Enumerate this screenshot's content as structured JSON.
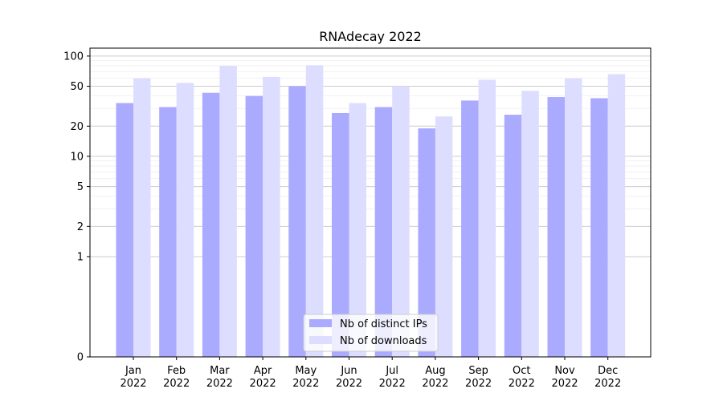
{
  "chart_data": {
    "type": "bar",
    "title": "RNAdecay 2022",
    "xlabel": "",
    "ylabel": "",
    "y_scale": "symlog",
    "ylim": [
      0,
      120
    ],
    "y_ticks": [
      0,
      1,
      2,
      5,
      10,
      20,
      50,
      100
    ],
    "y_tick_labels": [
      "0",
      "1",
      "2",
      "5",
      "10",
      "20",
      "50",
      "100"
    ],
    "categories": [
      "Jan\n2022",
      "Feb\n2022",
      "Mar\n2022",
      "Apr\n2022",
      "May\n2022",
      "Jun\n2022",
      "Jul\n2022",
      "Aug\n2022",
      "Sep\n2022",
      "Oct\n2022",
      "Nov\n2022",
      "Dec\n2022"
    ],
    "series": [
      {
        "name": "Nb of distinct IPs",
        "color": "#aaaaff",
        "values": [
          34,
          31,
          43,
          40,
          50,
          27,
          31,
          19,
          36,
          26,
          39,
          38
        ]
      },
      {
        "name": "Nb of downloads",
        "color": "#ddddff",
        "values": [
          60,
          54,
          80,
          62,
          81,
          34,
          50,
          25,
          58,
          45,
          60,
          66
        ]
      }
    ],
    "grid": true,
    "legend_position": "lower center"
  }
}
